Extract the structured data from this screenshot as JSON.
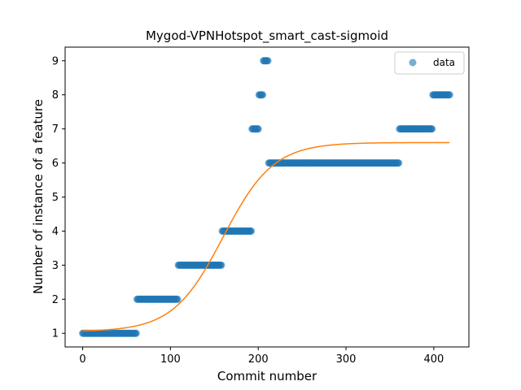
{
  "chart_data": {
    "type": "scatter",
    "title": "Mygod-VPNHotspot_smart_cast-sigmoid",
    "xlabel": "Commit number",
    "ylabel": "Number of instance of a feature",
    "xlim": [
      -20,
      440
    ],
    "ylim": [
      0.6,
      9.4
    ],
    "xticks": [
      0,
      100,
      200,
      300,
      400
    ],
    "yticks": [
      1,
      2,
      3,
      4,
      5,
      6,
      7,
      8,
      9
    ],
    "grid": false,
    "legend_position": "top-right",
    "colors": {
      "data": "#1f77b4",
      "fit": "#ff7f0e"
    },
    "data_segments": [
      {
        "x_start": 0,
        "x_end": 61,
        "y": 1
      },
      {
        "x_start": 62,
        "x_end": 108,
        "y": 2
      },
      {
        "x_start": 109,
        "x_end": 158,
        "y": 3
      },
      {
        "x_start": 159,
        "x_end": 192,
        "y": 4
      },
      {
        "x_start": 193,
        "x_end": 200,
        "y": 7
      },
      {
        "x_start": 201,
        "x_end": 205,
        "y": 8
      },
      {
        "x_start": 206,
        "x_end": 211,
        "y": 9
      },
      {
        "x_start": 212,
        "x_end": 360,
        "y": 6
      },
      {
        "x_start": 361,
        "x_end": 398,
        "y": 7
      },
      {
        "x_start": 399,
        "x_end": 418,
        "y": 8
      }
    ],
    "series": [
      {
        "name": "data",
        "kind": "scatter"
      },
      {
        "kind": "line",
        "model": "sigmoid",
        "x_range": [
          0,
          418
        ],
        "L": 5.55,
        "k": 0.035,
        "x0": 160,
        "b": 1.05
      }
    ]
  }
}
